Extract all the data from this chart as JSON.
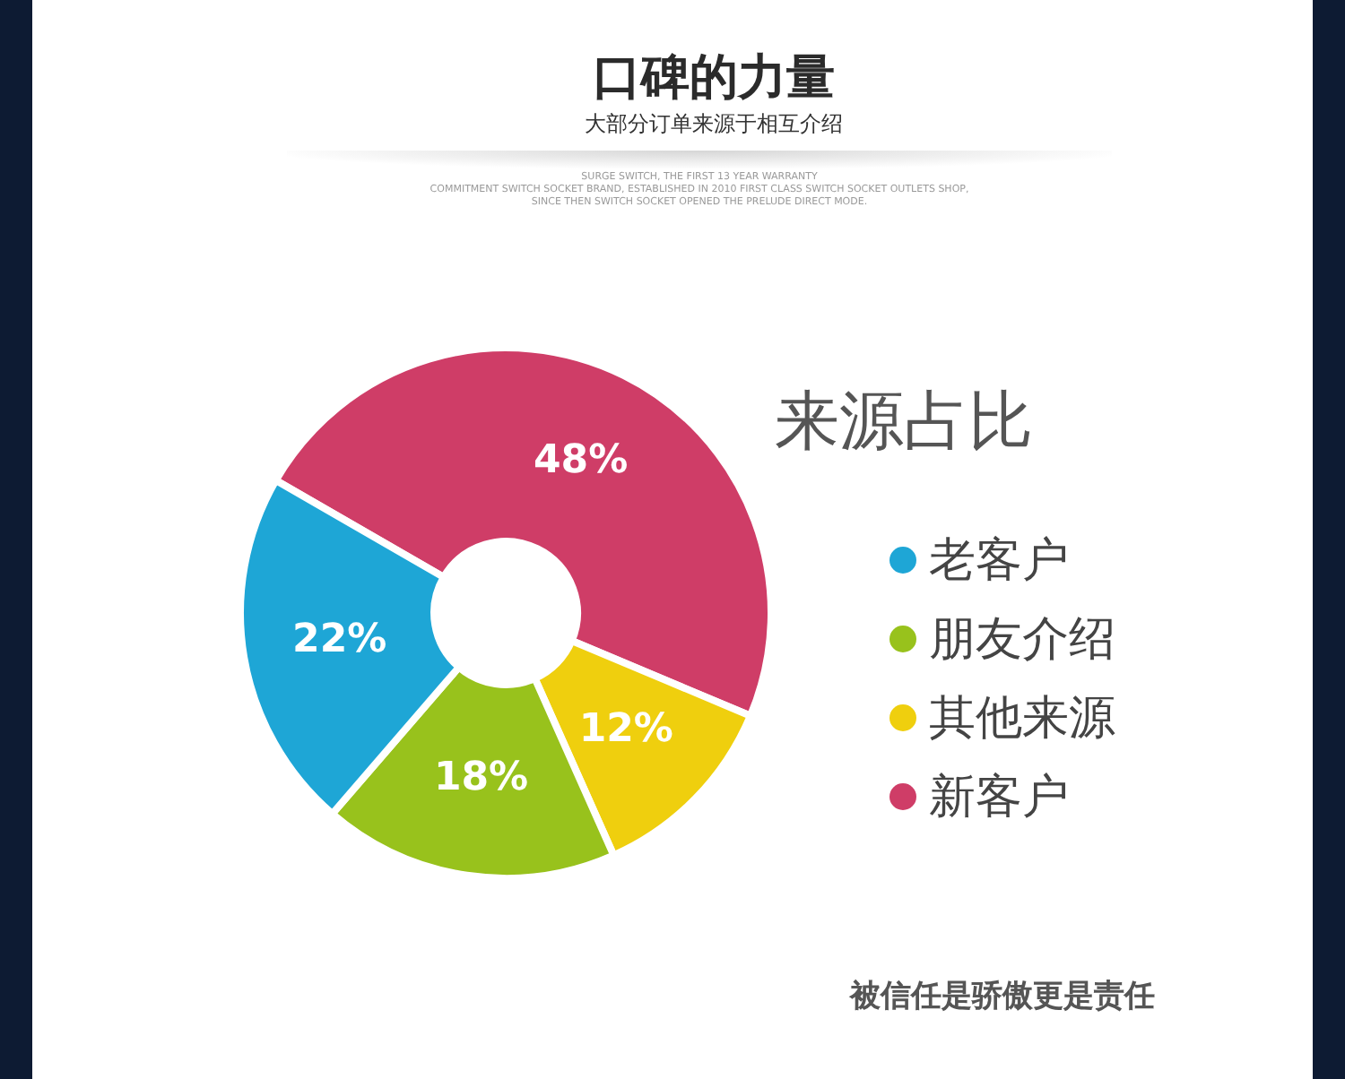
{
  "chart_data": {
    "type": "donut",
    "title": "口碑的力量",
    "subtitle": "大部分订单来源于相互介绍",
    "legend_title": "来源占比",
    "categories": [
      "老客户",
      "朋友介绍",
      "其他来源",
      "新客户"
    ],
    "values": [
      22,
      18,
      12,
      48
    ],
    "colors": [
      "#1ea6d6",
      "#98c21c",
      "#efcf0e",
      "#cf3d67"
    ],
    "value_labels": [
      "22%",
      "18%",
      "12%",
      "48%"
    ],
    "legend": "right",
    "annotations": [
      "SURGE SWITCH, THE FIRST 13 YEAR WARRANTY",
      "COMMITMENT SWITCH SOCKET BRAND, ESTABLISHED IN 2010 FIRST CLASS SWITCH SOCKET OUTLETS SHOP,",
      "SINCE THEN SWITCH SOCKET OPENED THE PRELUDE DIRECT MODE.",
      "被信任是骄傲更是责任"
    ]
  }
}
